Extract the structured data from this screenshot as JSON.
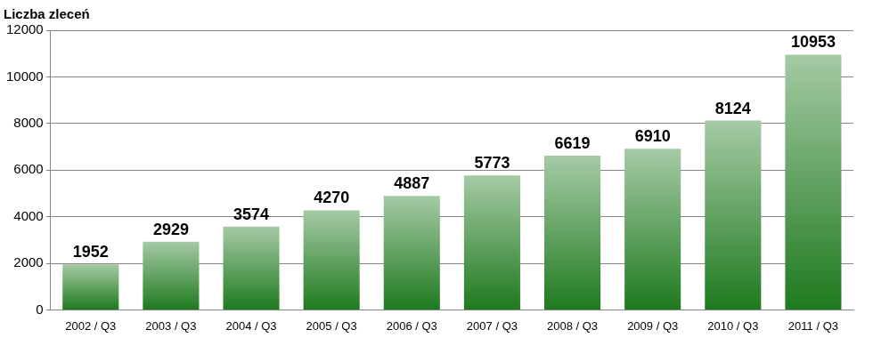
{
  "chart_data": {
    "type": "bar",
    "y_label": "Liczba zleceń",
    "categories": [
      "2002 / Q3",
      "2003 / Q3",
      "2004 / Q3",
      "2005 / Q3",
      "2006 / Q3",
      "2007 / Q3",
      "2008 / Q3",
      "2009 / Q3",
      "2010 / Q3",
      "2011 / Q3"
    ],
    "values": [
      1952,
      2929,
      3574,
      4270,
      4887,
      5773,
      6619,
      6910,
      8124,
      10953
    ],
    "color": "#1e7a1e",
    "ylim": [
      0,
      12000
    ],
    "yticks": [
      0,
      2000,
      4000,
      6000,
      8000,
      10000,
      12000
    ],
    "grid": true,
    "data_labels": true
  }
}
